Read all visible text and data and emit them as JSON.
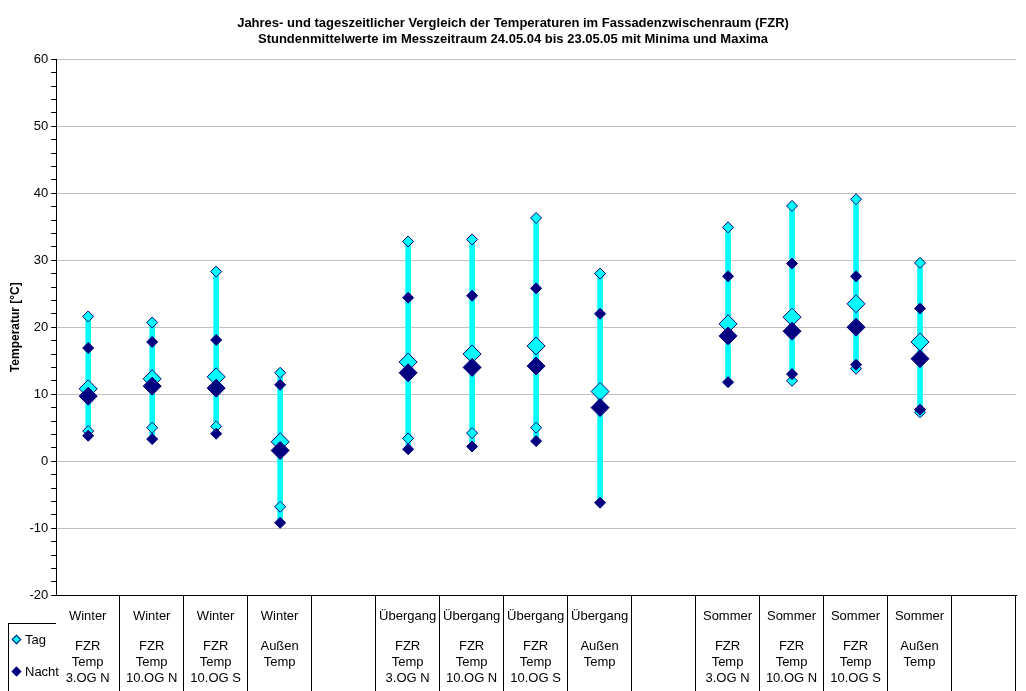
{
  "chart_data": {
    "type": "scatter",
    "title": "Jahres- und tageszeitlicher Vergleich der Temperaturen im Fassadenzwischenraum (FZR)\nStundenmittelwerte im Messzeitraum 24.05.04 bis 23.05.05 mit Minima und Maxima",
    "ylabel": "Temperatur [°C]",
    "categories": [
      "Winter FZR Temp 3.OG N",
      "Winter FZR Temp 10.OG N",
      "Winter FZR Temp 10.OG S",
      "Winter Außen Temp",
      null,
      "Übergang FZR Temp 3.OG N",
      "Übergang FZR Temp 10.OG N",
      "Übergang FZR Temp 10.OG S",
      "Übergang Außen Temp",
      null,
      "Sommer FZR Temp 3.OG N",
      "Sommer FZR Temp 10.OG N",
      "Sommer FZR Temp 10.OG S",
      "Sommer Außen Temp",
      null
    ],
    "series": [
      {
        "type": "bar",
        "color": "#00ffff",
        "base": [
          3.8,
          3.3,
          4.1,
          -9.2,
          null,
          1.8,
          2.2,
          3.0,
          -6.2,
          null,
          11.8,
          12.0,
          13.8,
          7.3,
          null
        ],
        "values": [
          17.8,
          17.4,
          24.2,
          22.4,
          null,
          31.0,
          30.9,
          33.3,
          34.2,
          null,
          23.1,
          26.1,
          25.3,
          22.3,
          null
        ]
      },
      {
        "color": "#00ffff",
        "values": [
          21.6,
          20.7,
          28.3,
          13.2,
          null,
          32.8,
          33.1,
          36.3,
          28.0,
          null,
          34.9,
          38.1,
          39.1,
          29.6,
          null
        ]
      },
      {
        "color": "#00ffff",
        "values": [
          4.5,
          5.0,
          5.2,
          -6.8,
          null,
          3.4,
          4.2,
          5.0,
          null,
          null,
          null,
          12.0,
          13.8,
          7.3,
          null
        ]
      },
      {
        "color": "#000080",
        "values": [
          16.9,
          17.8,
          18.1,
          11.4,
          null,
          24.4,
          24.7,
          25.8,
          22.0,
          null,
          27.6,
          29.5,
          27.6,
          22.8,
          null
        ]
      },
      {
        "color": "#000080",
        "values": [
          3.8,
          3.3,
          4.1,
          -9.2,
          null,
          1.8,
          2.2,
          3.0,
          -6.2,
          null,
          11.8,
          13.0,
          14.4,
          7.7,
          null
        ]
      },
      {
        "name": "Tag",
        "color": "#00ffff",
        "values": [
          10.8,
          12.3,
          12.6,
          2.9,
          null,
          14.8,
          16.0,
          17.2,
          10.4,
          null,
          20.5,
          21.5,
          23.5,
          17.8,
          null
        ]
      },
      {
        "name": "Nacht",
        "color": "#000080",
        "values": [
          9.7,
          11.2,
          10.9,
          1.6,
          null,
          13.2,
          14.0,
          14.2,
          8.0,
          null,
          18.7,
          19.4,
          20.0,
          15.3,
          null
        ]
      }
    ],
    "ylim": [
      -20,
      60
    ],
    "yticks": [
      -20,
      {
        "value": -18,
        "label": null
      },
      {
        "value": -16,
        "label": null
      },
      {
        "value": -14,
        "label": null
      },
      {
        "value": -12,
        "label": null
      },
      -10,
      {
        "value": -8,
        "label": null
      },
      {
        "value": -6,
        "label": null
      },
      {
        "value": -4,
        "label": null
      },
      {
        "value": -2,
        "label": null
      },
      0,
      {
        "value": 2,
        "label": null
      },
      {
        "value": 4,
        "label": null
      },
      {
        "value": 6,
        "label": null
      },
      {
        "value": 8,
        "label": null
      },
      10,
      {
        "value": 12,
        "label": null
      },
      {
        "value": 14,
        "label": null
      },
      {
        "value": 16,
        "label": null
      },
      {
        "value": 18,
        "label": null
      },
      20,
      {
        "value": 22,
        "label": null
      },
      {
        "value": 24,
        "label": null
      },
      {
        "value": 26,
        "label": null
      },
      {
        "value": 28,
        "label": null
      },
      30,
      {
        "value": 32,
        "label": null
      },
      {
        "value": 34,
        "label": null
      },
      {
        "value": 36,
        "label": null
      },
      {
        "value": 38,
        "label": null
      },
      40,
      {
        "value": 42,
        "label": null
      },
      {
        "value": 44,
        "label": null
      },
      {
        "value": 46,
        "label": null
      },
      {
        "value": 48,
        "label": null
      },
      50,
      {
        "value": 52,
        "label": null
      },
      {
        "value": 54,
        "label": null
      },
      {
        "value": 56,
        "label": null
      },
      {
        "value": 58,
        "label": null
      },
      60
    ],
    "grid": "y",
    "legend": "bottom left",
    "marker": "diamond"
  }
}
